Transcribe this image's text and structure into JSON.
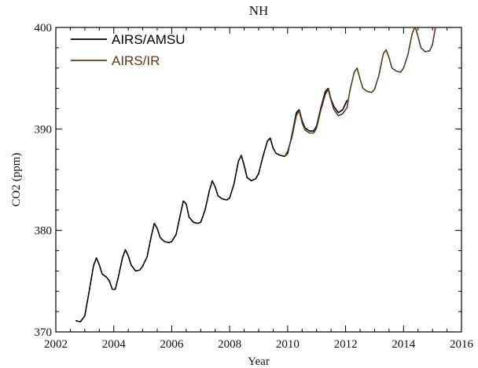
{
  "chart_data": {
    "type": "line",
    "title": "NH",
    "xlabel": "Year",
    "ylabel": "CO2 (ppm)",
    "xlim": [
      2002,
      2016
    ],
    "ylim": [
      370,
      400
    ],
    "xticks": [
      2002,
      2004,
      2006,
      2008,
      2010,
      2012,
      2014,
      2016
    ],
    "yticks": [
      370,
      380,
      390,
      400
    ],
    "grid": false,
    "legend_position": "top-left",
    "series": [
      {
        "name": "AIRS/AMSU",
        "color": "#000000",
        "x": [
          2002.7,
          2002.85,
          2003.0,
          2003.15,
          2003.3,
          2003.4,
          2003.5,
          2003.6,
          2003.75,
          2003.85,
          2003.95,
          2004.05,
          2004.15,
          2004.3,
          2004.4,
          2004.5,
          2004.6,
          2004.75,
          2004.9,
          2005.0,
          2005.15,
          2005.3,
          2005.4,
          2005.5,
          2005.6,
          2005.75,
          2005.9,
          2006.0,
          2006.15,
          2006.3,
          2006.4,
          2006.5,
          2006.6,
          2006.75,
          2006.9,
          2007.0,
          2007.15,
          2007.3,
          2007.4,
          2007.5,
          2007.6,
          2007.75,
          2007.9,
          2008.0,
          2008.15,
          2008.3,
          2008.4,
          2008.5,
          2008.6,
          2008.75,
          2008.9,
          2009.0,
          2009.15,
          2009.3,
          2009.4,
          2009.5,
          2009.6,
          2009.75,
          2009.9,
          2010.0,
          2010.15,
          2010.3,
          2010.4,
          2010.5,
          2010.6,
          2010.75,
          2010.9,
          2011.0,
          2011.15,
          2011.3,
          2011.4,
          2011.5,
          2011.6,
          2011.75,
          2011.9,
          2012.05
        ],
        "values": [
          371.1,
          371.0,
          371.6,
          374.0,
          376.5,
          377.3,
          376.6,
          375.7,
          375.4,
          375.0,
          374.2,
          374.2,
          375.3,
          377.3,
          378.1,
          377.5,
          376.6,
          376.0,
          376.1,
          376.5,
          377.4,
          379.5,
          380.7,
          380.2,
          379.3,
          378.9,
          378.8,
          378.9,
          379.6,
          381.6,
          382.9,
          382.6,
          381.3,
          380.8,
          380.7,
          380.8,
          382.0,
          383.9,
          384.9,
          384.3,
          383.4,
          383.1,
          383.0,
          383.2,
          384.6,
          386.8,
          387.4,
          386.4,
          385.2,
          384.9,
          385.1,
          385.6,
          387.3,
          388.8,
          389.1,
          388.1,
          387.6,
          387.4,
          387.3,
          387.6,
          389.4,
          391.6,
          391.9,
          390.8,
          390.1,
          389.8,
          389.8,
          390.3,
          392.1,
          393.7,
          394.0,
          392.9,
          392.2,
          391.6,
          391.9,
          392.8
        ]
      },
      {
        "name": "AIRS/IR",
        "color": "#5a3a1a",
        "x": [
          2009.9,
          2010.0,
          2010.15,
          2010.3,
          2010.4,
          2010.5,
          2010.6,
          2010.75,
          2010.9,
          2011.0,
          2011.15,
          2011.3,
          2011.4,
          2011.5,
          2011.6,
          2011.75,
          2011.9,
          2012.05,
          2012.15,
          2012.3,
          2012.4,
          2012.5,
          2012.6,
          2012.75,
          2012.9,
          2013.0,
          2013.15,
          2013.3,
          2013.4,
          2013.5,
          2013.6,
          2013.75,
          2013.9,
          2014.0,
          2014.15,
          2014.3,
          2014.4,
          2014.5,
          2014.6,
          2014.75,
          2014.9,
          2015.0,
          2015.1
        ],
        "values": [
          387.3,
          387.8,
          389.2,
          391.3,
          391.8,
          390.6,
          389.9,
          389.6,
          389.6,
          390.1,
          391.9,
          393.4,
          393.9,
          392.8,
          391.9,
          391.3,
          391.5,
          392.1,
          393.8,
          395.6,
          396.0,
          394.9,
          394.0,
          393.7,
          393.6,
          393.9,
          395.3,
          397.4,
          397.8,
          397.0,
          396.0,
          395.7,
          395.6,
          396.0,
          397.3,
          399.4,
          400.1,
          399.1,
          398.0,
          397.6,
          397.7,
          398.3,
          400.0
        ]
      }
    ]
  }
}
